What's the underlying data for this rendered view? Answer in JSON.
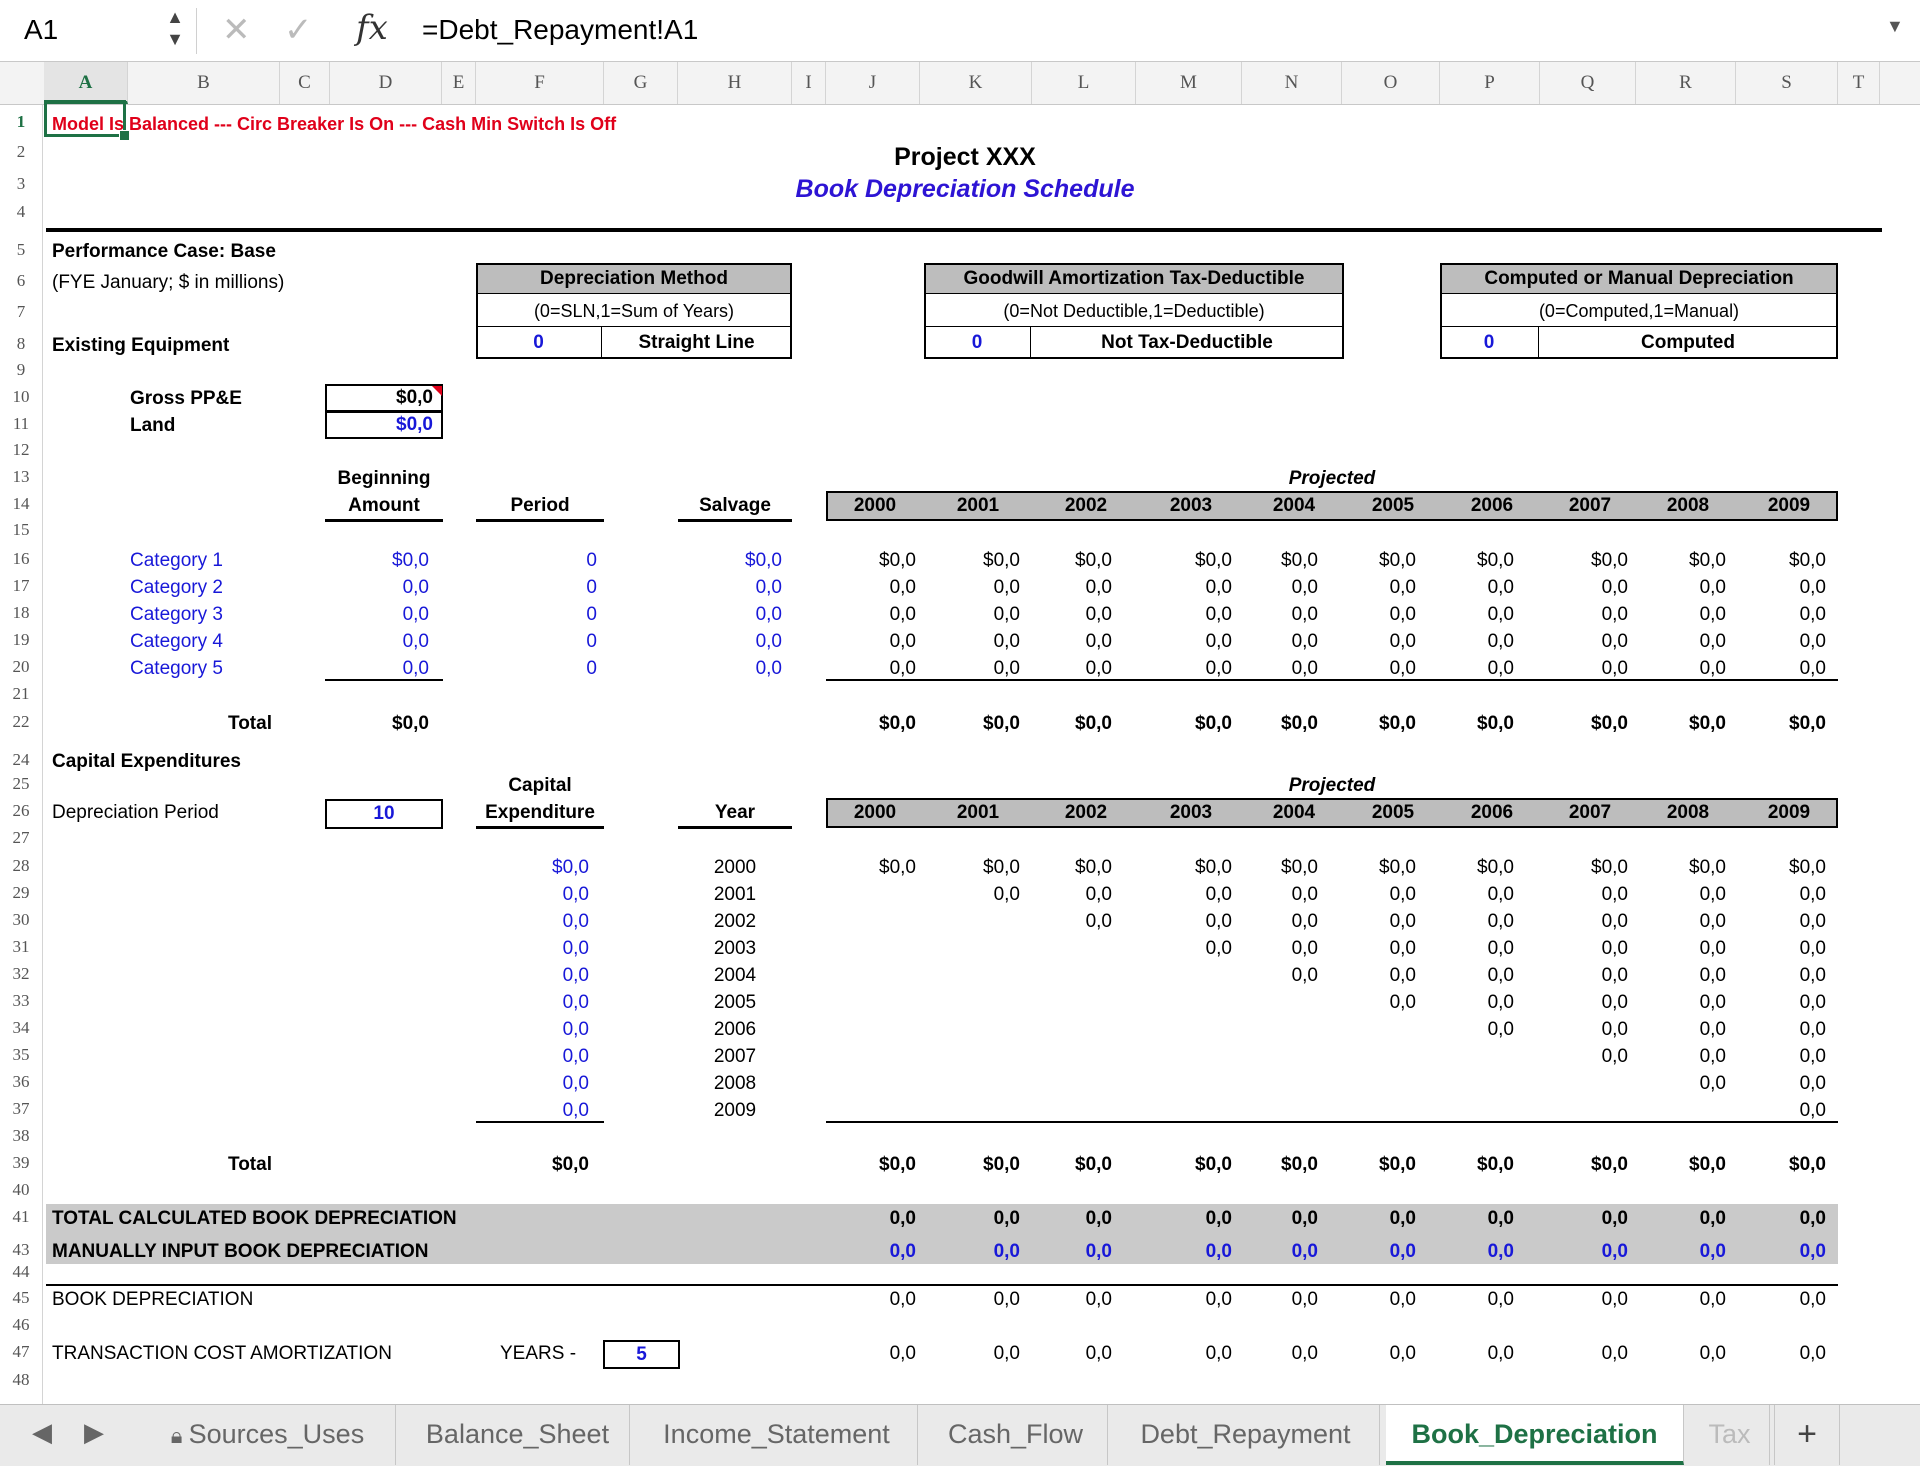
{
  "formula_bar": {
    "name_box": "A1",
    "formula": "=Debt_Repayment!A1"
  },
  "columns": [
    "A",
    "B",
    "C",
    "D",
    "E",
    "F",
    "G",
    "H",
    "I",
    "J",
    "K",
    "L",
    "M",
    "N",
    "O",
    "P",
    "Q",
    "R",
    "S",
    "T"
  ],
  "rows": [
    "1",
    "2",
    "3",
    "4",
    "5",
    "6",
    "7",
    "8",
    "9",
    "10",
    "11",
    "12",
    "13",
    "14",
    "15",
    "16",
    "17",
    "18",
    "19",
    "20",
    "21",
    "22",
    "24",
    "25",
    "26",
    "27",
    "28",
    "29",
    "30",
    "31",
    "32",
    "33",
    "34",
    "35",
    "36",
    "37",
    "38",
    "39",
    "40",
    "41",
    "43",
    "44",
    "45",
    "46",
    "47",
    "48"
  ],
  "status_line": "Model Is Balanced --- Circ Breaker Is On --- Cash Min Switch Is Off",
  "title": "Project XXX",
  "subtitle": "Book Depreciation Schedule",
  "performance_case": "Performance Case: Base",
  "fye_note": "(FYE January; $ in millions)",
  "existing_equipment": "Existing Equipment",
  "dep_method": {
    "header": "Depreciation Method",
    "note": "(0=SLN,1=Sum of Years)",
    "value": "0",
    "label": "Straight Line"
  },
  "goodwill": {
    "header": "Goodwill Amortization Tax-Deductible",
    "note": "(0=Not Deductible,1=Deductible)",
    "value": "0",
    "label": "Not Tax-Deductible"
  },
  "computed": {
    "header": "Computed or Manual Depreciation",
    "note": "(0=Computed,1=Manual)",
    "value": "0",
    "label": "Computed"
  },
  "gross_ppe": {
    "label": "Gross PP&E",
    "value": "$0,0"
  },
  "land": {
    "label": "Land",
    "value": "$0,0"
  },
  "projected_label": "Projected",
  "years": [
    "2000",
    "2001",
    "2002",
    "2003",
    "2004",
    "2005",
    "2006",
    "2007",
    "2008",
    "2009"
  ],
  "existing": {
    "headers": {
      "beginning_1": "Beginning",
      "beginning_2": "Amount",
      "period": "Period",
      "salvage": "Salvage"
    },
    "rows": [
      {
        "category": "Category 1",
        "amount": "$0,0",
        "period": "0",
        "salvage": "$0,0",
        "values": [
          "$0,0",
          "$0,0",
          "$0,0",
          "$0,0",
          "$0,0",
          "$0,0",
          "$0,0",
          "$0,0",
          "$0,0",
          "$0,0"
        ]
      },
      {
        "category": "Category 2",
        "amount": "0,0",
        "period": "0",
        "salvage": "0,0",
        "values": [
          "0,0",
          "0,0",
          "0,0",
          "0,0",
          "0,0",
          "0,0",
          "0,0",
          "0,0",
          "0,0",
          "0,0"
        ]
      },
      {
        "category": "Category 3",
        "amount": "0,0",
        "period": "0",
        "salvage": "0,0",
        "values": [
          "0,0",
          "0,0",
          "0,0",
          "0,0",
          "0,0",
          "0,0",
          "0,0",
          "0,0",
          "0,0",
          "0,0"
        ]
      },
      {
        "category": "Category 4",
        "amount": "0,0",
        "period": "0",
        "salvage": "0,0",
        "values": [
          "0,0",
          "0,0",
          "0,0",
          "0,0",
          "0,0",
          "0,0",
          "0,0",
          "0,0",
          "0,0",
          "0,0"
        ]
      },
      {
        "category": "Category 5",
        "amount": "0,0",
        "period": "0",
        "salvage": "0,0",
        "values": [
          "0,0",
          "0,0",
          "0,0",
          "0,0",
          "0,0",
          "0,0",
          "0,0",
          "0,0",
          "0,0",
          "0,0"
        ]
      }
    ],
    "total_label": "Total",
    "total_amount": "$0,0",
    "totals": [
      "$0,0",
      "$0,0",
      "$0,0",
      "$0,0",
      "$0,0",
      "$0,0",
      "$0,0",
      "$0,0",
      "$0,0",
      "$0,0"
    ]
  },
  "capex": {
    "section_label": "Capital Expenditures",
    "dep_period_label": "Depreciation Period",
    "dep_period_value": "10",
    "headers": {
      "capex_1": "Capital",
      "capex_2": "Expenditure",
      "year": "Year"
    },
    "rows": [
      {
        "amount": "$0,0",
        "year": "2000",
        "values": [
          "$0,0",
          "$0,0",
          "$0,0",
          "$0,0",
          "$0,0",
          "$0,0",
          "$0,0",
          "$0,0",
          "$0,0",
          "$0,0"
        ]
      },
      {
        "amount": "0,0",
        "year": "2001",
        "values": [
          "",
          "0,0",
          "0,0",
          "0,0",
          "0,0",
          "0,0",
          "0,0",
          "0,0",
          "0,0",
          "0,0"
        ]
      },
      {
        "amount": "0,0",
        "year": "2002",
        "values": [
          "",
          "",
          "0,0",
          "0,0",
          "0,0",
          "0,0",
          "0,0",
          "0,0",
          "0,0",
          "0,0"
        ]
      },
      {
        "amount": "0,0",
        "year": "2003",
        "values": [
          "",
          "",
          "",
          "0,0",
          "0,0",
          "0,0",
          "0,0",
          "0,0",
          "0,0",
          "0,0"
        ]
      },
      {
        "amount": "0,0",
        "year": "2004",
        "values": [
          "",
          "",
          "",
          "",
          "0,0",
          "0,0",
          "0,0",
          "0,0",
          "0,0",
          "0,0"
        ]
      },
      {
        "amount": "0,0",
        "year": "2005",
        "values": [
          "",
          "",
          "",
          "",
          "",
          "0,0",
          "0,0",
          "0,0",
          "0,0",
          "0,0"
        ]
      },
      {
        "amount": "0,0",
        "year": "2006",
        "values": [
          "",
          "",
          "",
          "",
          "",
          "",
          "0,0",
          "0,0",
          "0,0",
          "0,0"
        ]
      },
      {
        "amount": "0,0",
        "year": "2007",
        "values": [
          "",
          "",
          "",
          "",
          "",
          "",
          "",
          "0,0",
          "0,0",
          "0,0"
        ]
      },
      {
        "amount": "0,0",
        "year": "2008",
        "values": [
          "",
          "",
          "",
          "",
          "",
          "",
          "",
          "",
          "0,0",
          "0,0"
        ]
      },
      {
        "amount": "0,0",
        "year": "2009",
        "values": [
          "",
          "",
          "",
          "",
          "",
          "",
          "",
          "",
          "",
          "0,0"
        ]
      }
    ],
    "total_label": "Total",
    "total_amount": "$0,0",
    "totals": [
      "$0,0",
      "$0,0",
      "$0,0",
      "$0,0",
      "$0,0",
      "$0,0",
      "$0,0",
      "$0,0",
      "$0,0",
      "$0,0"
    ]
  },
  "summary": {
    "total_calc_label": "TOTAL CALCULATED BOOK DEPRECIATION",
    "total_calc": [
      "0,0",
      "0,0",
      "0,0",
      "0,0",
      "0,0",
      "0,0",
      "0,0",
      "0,0",
      "0,0",
      "0,0"
    ],
    "manual_label": "MANUALLY INPUT BOOK DEPRECIATION",
    "manual": [
      "0,0",
      "0,0",
      "0,0",
      "0,0",
      "0,0",
      "0,0",
      "0,0",
      "0,0",
      "0,0",
      "0,0"
    ],
    "book_label": "BOOK DEPRECIATION",
    "book": [
      "0,0",
      "0,0",
      "0,0",
      "0,0",
      "0,0",
      "0,0",
      "0,0",
      "0,0",
      "0,0",
      "0,0"
    ],
    "transaction_label": "TRANSACTION COST AMORTIZATION",
    "years_label": "YEARS -",
    "transaction_years": "5",
    "transaction": [
      "0,0",
      "0,0",
      "0,0",
      "0,0",
      "0,0",
      "0,0",
      "0,0",
      "0,0",
      "0,0",
      "0,0"
    ]
  },
  "tabs": [
    "Sources_Uses",
    "Balance_Sheet",
    "Income_Statement",
    "Cash_Flow",
    "Debt_Repayment",
    "Book_Depreciation",
    "Tax"
  ],
  "active_tab": "Book_Depreciation",
  "add_sheet": "+",
  "colors": {
    "accent": "#1e7145",
    "input_blue": "#1818d8",
    "alert_red": "#e0001a",
    "header_grey": "#bdbdbd"
  }
}
